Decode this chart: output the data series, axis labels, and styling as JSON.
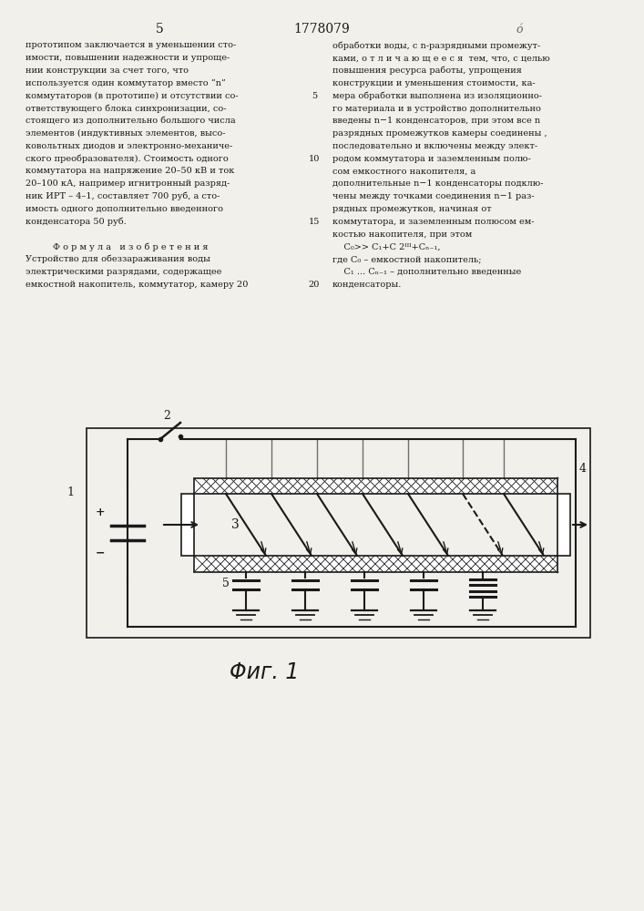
{
  "page_number_left": "5",
  "page_number_center": "1778079",
  "bg_color": "#f2f0eb",
  "text_color": "#1a1a1a",
  "fig_label": "Φиг. 1",
  "left_col_lines": [
    "прототипом заключается в уменьшении сто-",
    "имости, повышении надежности и упроще-",
    "нии конструкции за счет того, что",
    "используется один коммутатор вместо “n”",
    "коммутаторов (в прототипе) и отсутствии со-",
    "ответствующего блока синхронизации, со-",
    "стоящего из дополнительно большого числа",
    "элементов (индуктивных элементов, высо-",
    "ковольтных диодов и электронно-механиче-",
    "ского преобразователя). Стоимость одного",
    "коммутатора на напряжение 20–50 кВ и ток",
    "20–100 кА, например игнитронный разряд-",
    "ник ИРТ – 4–1, составляет 700 руб, а сто-",
    "имость одного дополнительно введенного",
    "конденсатора 50 руб.",
    "",
    "Ф о р м у л а   и з о б р е т е н и я",
    "Устройство для обеззараживания воды",
    "электрическими разрядами, содержащее",
    "емкостной накопитель, коммутатор, камеру 20"
  ],
  "right_col_lines": [
    "обработки воды, с n-разрядными промежут-",
    "ками, о т л и ч а ю щ е е с я  тем, что, с целью",
    "повышения ресурса работы, упрощения",
    "конструкции и уменьшения стоимости, ка-",
    "мера обработки выполнена из изоляционно-",
    "го материала и в устройство дополнительно",
    "введены n−1 конденсаторов, при этом все n",
    "разрядных промежутков камеры соединены ,",
    "последовательно и включены между элект-",
    "родом коммутатора и заземленным полю-",
    "сом емкостного накопителя, а",
    "дополнительные n−1 конденсаторы подклю-",
    "чены между точками соединения n−1 раз-",
    "рядных промежутков, начиная от",
    "коммутатора, и заземленным полюсом ем-",
    "костью накопителя, при этом",
    "    C₀>> C₁+C 2ᴵᴵᴵ+Cₙ₋₁,",
    "где C₀ – емкостной накопитель;",
    "    C₁ ... Cₙ₋₁ – дополнительно введенные",
    "конденсаторы."
  ],
  "line_numbers": [
    5,
    10,
    15,
    20
  ],
  "line_number_rows": [
    4,
    9,
    14,
    19
  ]
}
